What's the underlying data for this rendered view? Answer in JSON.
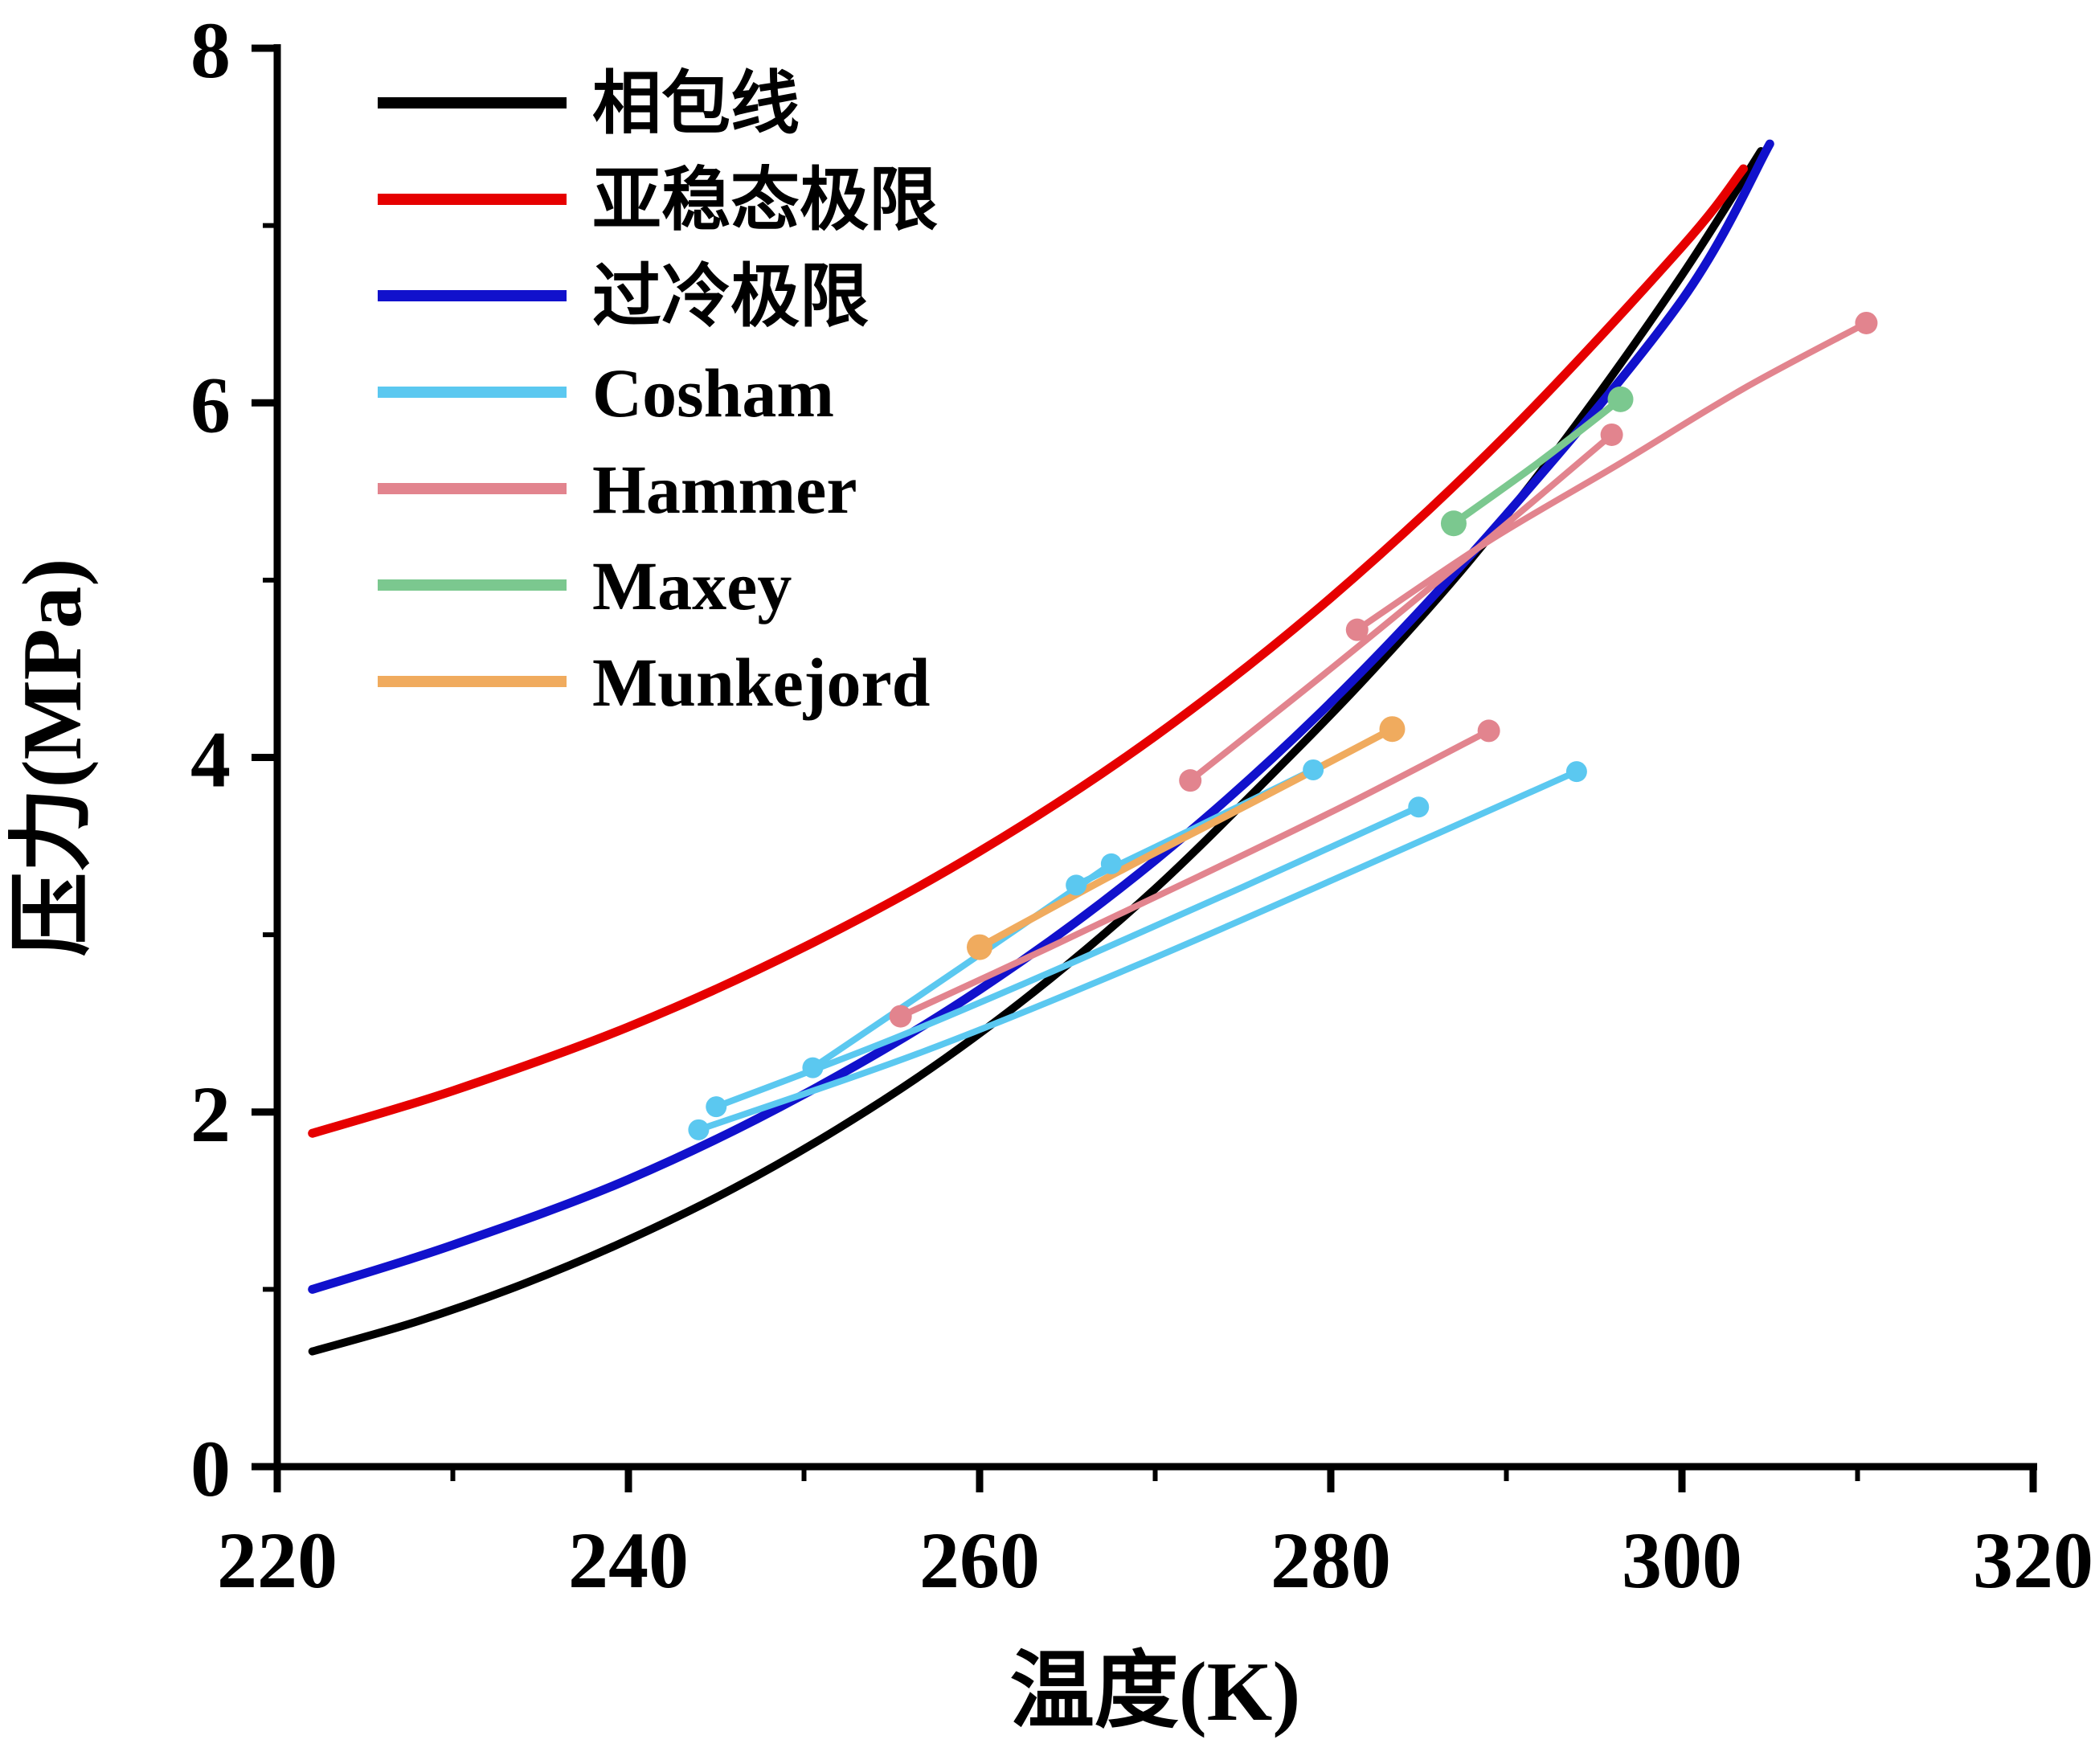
{
  "chart_data": {
    "type": "line",
    "title": "",
    "xlabel": "温度(K)",
    "ylabel": "压力(MPa)",
    "xlim": [
      220,
      320
    ],
    "ylim": [
      0,
      8
    ],
    "xticks": [
      220,
      240,
      260,
      280,
      300,
      320
    ],
    "yticks": [
      0,
      2,
      4,
      6,
      8
    ],
    "x_minor_ticks": [
      230,
      250,
      270,
      290,
      310
    ],
    "y_minor_ticks": [
      1,
      3,
      5,
      7
    ],
    "grid": false,
    "legend_position": "top-left",
    "series": [
      {
        "id": "phase-envelope",
        "name": "相包线",
        "color": "#000000",
        "line_width": 10,
        "marker_radius": 0,
        "lines": [
          {
            "x": [
              222,
              228,
              234,
              240,
              246,
              252,
              258,
              264,
              270,
              276,
              282,
              288,
              294,
              300,
              304.5
            ],
            "y": [
              0.65,
              0.82,
              1.03,
              1.28,
              1.57,
              1.91,
              2.3,
              2.75,
              3.26,
              3.84,
              4.45,
              5.12,
              5.88,
              6.72,
              7.42
            ],
            "dots": []
          }
        ]
      },
      {
        "id": "metastable-limit",
        "name": "亚稳态极限",
        "color": "#e60000",
        "line_width": 11,
        "marker_radius": 0,
        "lines": [
          {
            "x": [
              222,
              230,
              240,
              250,
              260,
              270,
              280,
              290,
              300,
              303.5
            ],
            "y": [
              1.88,
              2.12,
              2.48,
              2.93,
              3.47,
              4.12,
              4.9,
              5.82,
              6.88,
              7.32
            ],
            "dots": []
          }
        ]
      },
      {
        "id": "supercooling-limit",
        "name": "过冷极限",
        "color": "#1111cc",
        "line_width": 11,
        "marker_radius": 0,
        "lines": [
          {
            "x": [
              222,
              230,
              240,
              250,
              260,
              270,
              280,
              290,
              300,
              305
            ],
            "y": [
              1.0,
              1.25,
              1.62,
              2.1,
              2.69,
              3.42,
              4.31,
              5.37,
              6.58,
              7.46
            ],
            "dots": []
          }
        ]
      },
      {
        "id": "cosham",
        "name": "Cosham",
        "color": "#5bc8f0",
        "line_width": 8,
        "marker_radius": 13,
        "lines": [
          {
            "x": [
              244,
              256.5,
              269,
              281.5,
              294
            ],
            "y": [
              1.9,
              2.33,
              2.83,
              3.37,
              3.92
            ],
            "dots": [
              [
                244,
                1.9
              ],
              [
                294,
                3.92
              ]
            ]
          },
          {
            "x": [
              245,
              255,
              265,
              275,
              285
            ],
            "y": [
              2.03,
              2.41,
              2.83,
              3.27,
              3.72
            ],
            "dots": [
              [
                245,
                2.03
              ],
              [
                285,
                3.72
              ]
            ]
          },
          {
            "x": [
              250.5,
              259,
              267.5
            ],
            "y": [
              2.25,
              2.82,
              3.4
            ],
            "dots": [
              [
                250.5,
                2.25
              ],
              [
                267.5,
                3.4
              ]
            ]
          },
          {
            "x": [
              265.5,
              272.2,
              279
            ],
            "y": [
              3.28,
              3.6,
              3.93
            ],
            "dots": [
              [
                265.5,
                3.28
              ],
              [
                279,
                3.93
              ]
            ]
          }
        ]
      },
      {
        "id": "hammer",
        "name": "Hammer",
        "color": "#e2848e",
        "line_width": 8,
        "marker_radius": 14,
        "lines": [
          {
            "x": [
              255.5,
              264,
              272.5,
              281,
              289
            ],
            "y": [
              2.54,
              2.93,
              3.33,
              3.74,
              4.15
            ],
            "dots": [
              [
                255.5,
                2.54
              ],
              [
                289,
                4.15
              ]
            ]
          },
          {
            "x": [
              272,
              280,
              288,
              296
            ],
            "y": [
              3.87,
              4.5,
              5.15,
              5.82
            ],
            "dots": [
              [
                272,
                3.87
              ],
              [
                296,
                5.82
              ]
            ]
          },
          {
            "x": [
              281.5,
              289,
              296.5,
              303.5,
              310.5
            ],
            "y": [
              4.72,
              5.22,
              5.66,
              6.08,
              6.45
            ],
            "dots": [
              [
                281.5,
                4.72
              ],
              [
                310.5,
                6.45
              ]
            ]
          }
        ]
      },
      {
        "id": "maxey",
        "name": "Maxey",
        "color": "#7bc88f",
        "line_width": 9,
        "marker_radius": 16,
        "lines": [
          {
            "x": [
              287,
              291.8,
              296.5
            ],
            "y": [
              5.32,
              5.66,
              6.02
            ],
            "dots": [
              [
                287,
                5.32
              ],
              [
                296.5,
                6.02
              ]
            ]
          }
        ]
      },
      {
        "id": "munkejord",
        "name": "Munkejord",
        "color": "#f0ab5e",
        "line_width": 9,
        "marker_radius": 16,
        "lines": [
          {
            "x": [
              260,
              268,
              276,
              283.5
            ],
            "y": [
              2.93,
              3.36,
              3.77,
              4.16
            ],
            "dots": [
              [
                260,
                2.93
              ],
              [
                283.5,
                4.16
              ]
            ]
          }
        ]
      }
    ]
  }
}
